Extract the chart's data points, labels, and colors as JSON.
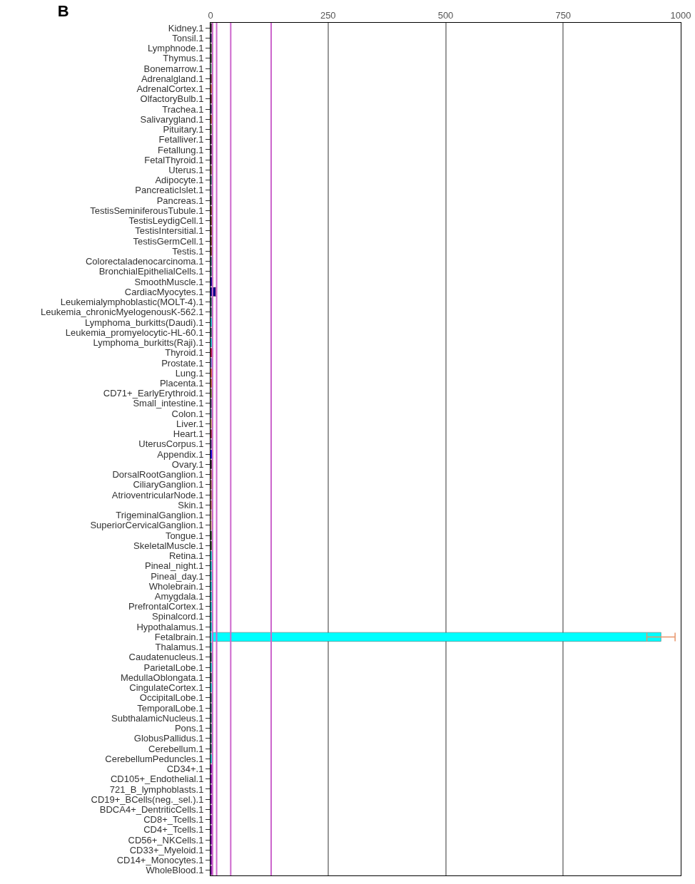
{
  "chart_data": {
    "type": "bar",
    "orientation": "horizontal",
    "title": "B",
    "categories": [
      "Kidney.1",
      "Tonsil.1",
      "Lymphnode.1",
      "Thymus.1",
      "Bonemarrow.1",
      "Adrenalgland.1",
      "AdrenalCortex.1",
      "OlfactoryBulb.1",
      "Trachea.1",
      "Salivarygland.1",
      "Pituitary.1",
      "Fetalliver.1",
      "Fetallung.1",
      "FetalThyroid.1",
      "Uterus.1",
      "Adipocyte.1",
      "PancreaticIslet.1",
      "Pancreas.1",
      "TestisSeminiferousTubule.1",
      "TestisLeydigCell.1",
      "TestisIntersitial.1",
      "TestisGermCell.1",
      "Testis.1",
      "Colorectaladenocarcinoma.1",
      "BronchialEpithelialCells.1",
      "SmoothMuscle.1",
      "CardiacMyocytes.1",
      "Leukemialymphoblastic(MOLT-4).1",
      "Leukemia_chronicMyelogenousK-562.1",
      "Lymphoma_burkitts(Daudi).1",
      "Leukemia_promyelocytic-HL-60.1",
      "Lymphoma_burkitts(Raji).1",
      "Thyroid.1",
      "Prostate.1",
      "Lung.1",
      "Placenta.1",
      "CD71+_EarlyErythroid.1",
      "Small_intestine.1",
      "Colon.1",
      "Liver.1",
      "Heart.1",
      "UterusCorpus.1",
      "Appendix.1",
      "Ovary.1",
      "DorsalRootGanglion.1",
      "CiliaryGanglion.1",
      "AtrioventricularNode.1",
      "Skin.1",
      "TrigeminalGanglion.1",
      "SuperiorCervicalGanglion.1",
      "Tongue.1",
      "SkeletalMuscle.1",
      "Retina.1",
      "Pineal_night.1",
      "Pineal_day.1",
      "Wholebrain.1",
      "Amygdala.1",
      "PrefrontalCortex.1",
      "Spinalcord.1",
      "Hypothalamus.1",
      "Fetalbrain.1",
      "Thalamus.1",
      "Caudatenucleus.1",
      "ParietalLobe.1",
      "MedullaOblongata.1",
      "CingulateCortex.1",
      "OccipitalLobe.1",
      "TemporalLobe.1",
      "SubthalamicNucleus.1",
      "Pons.1",
      "GlobusPallidus.1",
      "Cerebellum.1",
      "CerebellumPeduncles.1",
      "CD34+.1",
      "CD105+_Endothelial.1",
      "721_B_lymphoblasts.1",
      "CD19+_BCells(neg._sel.).1",
      "BDCA4+_DentriticCells.1",
      "CD8+_Tcells.1",
      "CD4+_Tcells.1",
      "CD56+_NKCells.1",
      "CD33+_Myeloid.1",
      "CD14+_Monocytes.1",
      "WholeBlood.1"
    ],
    "values": [
      4,
      4,
      4,
      4,
      4,
      4,
      4,
      4,
      4,
      4,
      4,
      4,
      4,
      4,
      4,
      4,
      4,
      4,
      4,
      4,
      4,
      4,
      4,
      4,
      4,
      5,
      12,
      4,
      4,
      4,
      4,
      4,
      5,
      4,
      4,
      4,
      4,
      4,
      4,
      4,
      4,
      4,
      5,
      4,
      4,
      4,
      4,
      4,
      4,
      4,
      4,
      4,
      4,
      4,
      4,
      4,
      4,
      4,
      4,
      4,
      958,
      4,
      4,
      4,
      4,
      4,
      4,
      4,
      4,
      4,
      4,
      4,
      4,
      4,
      4,
      4,
      4,
      4,
      4,
      4,
      4,
      4,
      4,
      4
    ],
    "colors": [
      "#333333",
      "#333366",
      "#3a5f3a",
      "#2f4f2f",
      "#66aa88",
      "#553333",
      "#aa5533",
      "#552222",
      "#333355",
      "#884422",
      "#446633",
      "#442244",
      "#442244",
      "#442244",
      "#665533",
      "#336666",
      "#666688",
      "#333333",
      "#553311",
      "#553311",
      "#553311",
      "#553311",
      "#553311",
      "#226666",
      "#226666",
      "#000088",
      "#000088",
      "#226666",
      "#226666",
      "#00cccc",
      "#226666",
      "#00cccc",
      "#aa1133",
      "#6677cc",
      "#cc5533",
      "#aa5522",
      "#667733",
      "#555577",
      "#557799",
      "#bb9966",
      "#882233",
      "#554488",
      "#0000dd",
      "#222222",
      "#996655",
      "#996655",
      "#996655",
      "#aa6655",
      "#ccaa88",
      "#ccaa88",
      "#225522",
      "#225522",
      "#00cccc",
      "#00cccc",
      "#00cccc",
      "#00cccc",
      "#00cccc",
      "#00cccc",
      "#00cccc",
      "#00cccc",
      "#00ffff",
      "#00cccc",
      "#226666",
      "#00cccc",
      "#226666",
      "#00cccc",
      "#226666",
      "#226666",
      "#226666",
      "#226666",
      "#226666",
      "#226666",
      "#00cccc",
      "#7700aa",
      "#7700aa",
      "#7700aa",
      "#7700aa",
      "#7700aa",
      "#7700aa",
      "#7700aa",
      "#7700aa",
      "#7700aa",
      "#7700aa",
      "#7700aa"
    ],
    "errors": [
      null,
      null,
      null,
      null,
      null,
      null,
      null,
      null,
      null,
      null,
      null,
      null,
      null,
      null,
      null,
      null,
      null,
      null,
      null,
      null,
      null,
      null,
      null,
      null,
      null,
      null,
      null,
      null,
      null,
      null,
      null,
      null,
      null,
      null,
      null,
      null,
      null,
      null,
      null,
      null,
      null,
      null,
      null,
      null,
      null,
      null,
      null,
      null,
      null,
      null,
      null,
      null,
      null,
      null,
      null,
      null,
      null,
      null,
      null,
      null,
      30,
      null,
      null,
      null,
      null,
      null,
      null,
      null,
      null,
      null,
      null,
      null,
      null,
      null,
      null,
      null,
      null,
      null,
      null,
      null,
      null,
      null,
      null,
      null
    ],
    "xlim": [
      0,
      1000
    ],
    "xticks": [
      0,
      250,
      500,
      750,
      1000
    ],
    "grid": "x",
    "ref_lines": [
      {
        "axis": "x",
        "value": 4.3,
        "color": "#cc66cc"
      },
      {
        "axis": "x",
        "value": 13,
        "color": "#cc66cc"
      },
      {
        "axis": "x",
        "value": 43,
        "color": "#cc66cc"
      },
      {
        "axis": "x",
        "value": 129,
        "color": "#cc66cc"
      }
    ]
  }
}
